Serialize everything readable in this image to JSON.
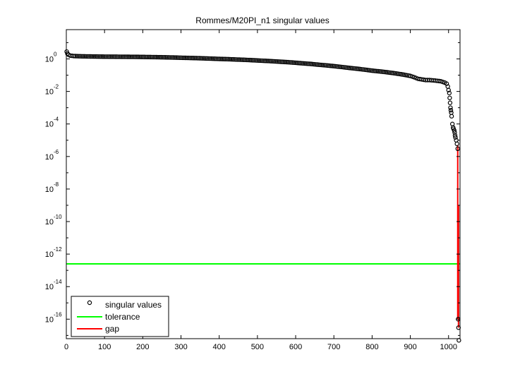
{
  "chart_data": {
    "type": "scatter",
    "title": "Rommes/M20PI_n1 singular values",
    "xlabel": "",
    "ylabel": "",
    "xlim": [
      0,
      1030
    ],
    "ylim_exp": [
      -17.2,
      1.8
    ],
    "y_scale": "log",
    "x_ticks": [
      0,
      100,
      200,
      300,
      400,
      500,
      600,
      700,
      800,
      900,
      1000
    ],
    "y_ticks": [
      {
        "base": "10",
        "exp": "0",
        "log": 0
      },
      {
        "base": "10",
        "exp": "-2",
        "log": -2
      },
      {
        "base": "10",
        "exp": "-4",
        "log": -4
      },
      {
        "base": "10",
        "exp": "-6",
        "log": -6
      },
      {
        "base": "10",
        "exp": "-8",
        "log": -8
      },
      {
        "base": "10",
        "exp": "-10",
        "log": -10
      },
      {
        "base": "10",
        "exp": "-12",
        "log": -12
      },
      {
        "base": "10",
        "exp": "-14",
        "log": -14
      },
      {
        "base": "10",
        "exp": "-16",
        "log": -16
      }
    ],
    "grid": false,
    "legend_position": "bottom-left",
    "series": [
      {
        "name": "singular values",
        "marker": "circle",
        "color": "#000000",
        "points": [
          [
            1,
            2.8
          ],
          [
            3,
            2.1
          ],
          [
            6,
            1.8
          ],
          [
            10,
            1.6
          ],
          [
            20,
            1.5
          ],
          [
            40,
            1.45
          ],
          [
            60,
            1.42
          ],
          [
            80,
            1.4
          ],
          [
            100,
            1.38
          ],
          [
            120,
            1.37
          ],
          [
            140,
            1.36
          ],
          [
            160,
            1.35
          ],
          [
            180,
            1.34
          ],
          [
            200,
            1.32
          ],
          [
            220,
            1.3
          ],
          [
            240,
            1.28
          ],
          [
            260,
            1.25
          ],
          [
            280,
            1.22
          ],
          [
            300,
            1.18
          ],
          [
            320,
            1.15
          ],
          [
            340,
            1.12
          ],
          [
            360,
            1.08
          ],
          [
            380,
            1.04
          ],
          [
            400,
            1.0
          ],
          [
            420,
            0.97
          ],
          [
            440,
            0.93
          ],
          [
            460,
            0.89
          ],
          [
            480,
            0.85
          ],
          [
            500,
            0.8
          ],
          [
            520,
            0.76
          ],
          [
            540,
            0.72
          ],
          [
            560,
            0.67
          ],
          [
            580,
            0.63
          ],
          [
            600,
            0.58
          ],
          [
            620,
            0.53
          ],
          [
            640,
            0.49
          ],
          [
            660,
            0.44
          ],
          [
            680,
            0.4
          ],
          [
            700,
            0.36
          ],
          [
            720,
            0.32
          ],
          [
            740,
            0.28
          ],
          [
            760,
            0.25
          ],
          [
            780,
            0.22
          ],
          [
            800,
            0.19
          ],
          [
            820,
            0.17
          ],
          [
            840,
            0.15
          ],
          [
            860,
            0.13
          ],
          [
            880,
            0.11
          ],
          [
            900,
            0.09
          ],
          [
            910,
            0.075
          ],
          [
            920,
            0.06
          ],
          [
            930,
            0.055
          ],
          [
            940,
            0.05
          ],
          [
            950,
            0.05
          ],
          [
            960,
            0.048
          ],
          [
            970,
            0.045
          ],
          [
            980,
            0.042
          ],
          [
            990,
            0.035
          ],
          [
            995,
            0.03
          ],
          [
            998,
            0.02
          ],
          [
            1000,
            0.012
          ],
          [
            1002,
            0.008
          ],
          [
            1003,
            0.004
          ],
          [
            1004,
            0.002
          ],
          [
            1005,
            0.001
          ],
          [
            1006,
            0.0007
          ],
          [
            1007,
            0.0005
          ],
          [
            1008,
            0.0003
          ],
          [
            1010,
            0.0001
          ],
          [
            1012,
            6e-05
          ],
          [
            1013,
            5e-05
          ],
          [
            1015,
            4e-05
          ],
          [
            1016,
            3e-05
          ],
          [
            1017,
            2e-05
          ],
          [
            1018,
            1.5e-05
          ],
          [
            1020,
            1e-05
          ],
          [
            1022,
            6e-06
          ],
          [
            1024,
            3e-06
          ],
          [
            1025,
            1e-16
          ],
          [
            1026,
            3e-17
          ],
          [
            1027,
            5e-18
          ]
        ]
      },
      {
        "name": "tolerance",
        "line": "horizontal",
        "color": "#00ff00",
        "x": [
          0,
          1030
        ],
        "y": 2.5e-13
      },
      {
        "name": "gap",
        "line": "vertical",
        "color": "#ff0000",
        "segments": [
          {
            "x": 1024,
            "y": [
              5e-06,
              1e-16
            ]
          },
          {
            "x": 1026,
            "y": [
              1e-09,
              3e-17
            ]
          }
        ]
      }
    ]
  }
}
